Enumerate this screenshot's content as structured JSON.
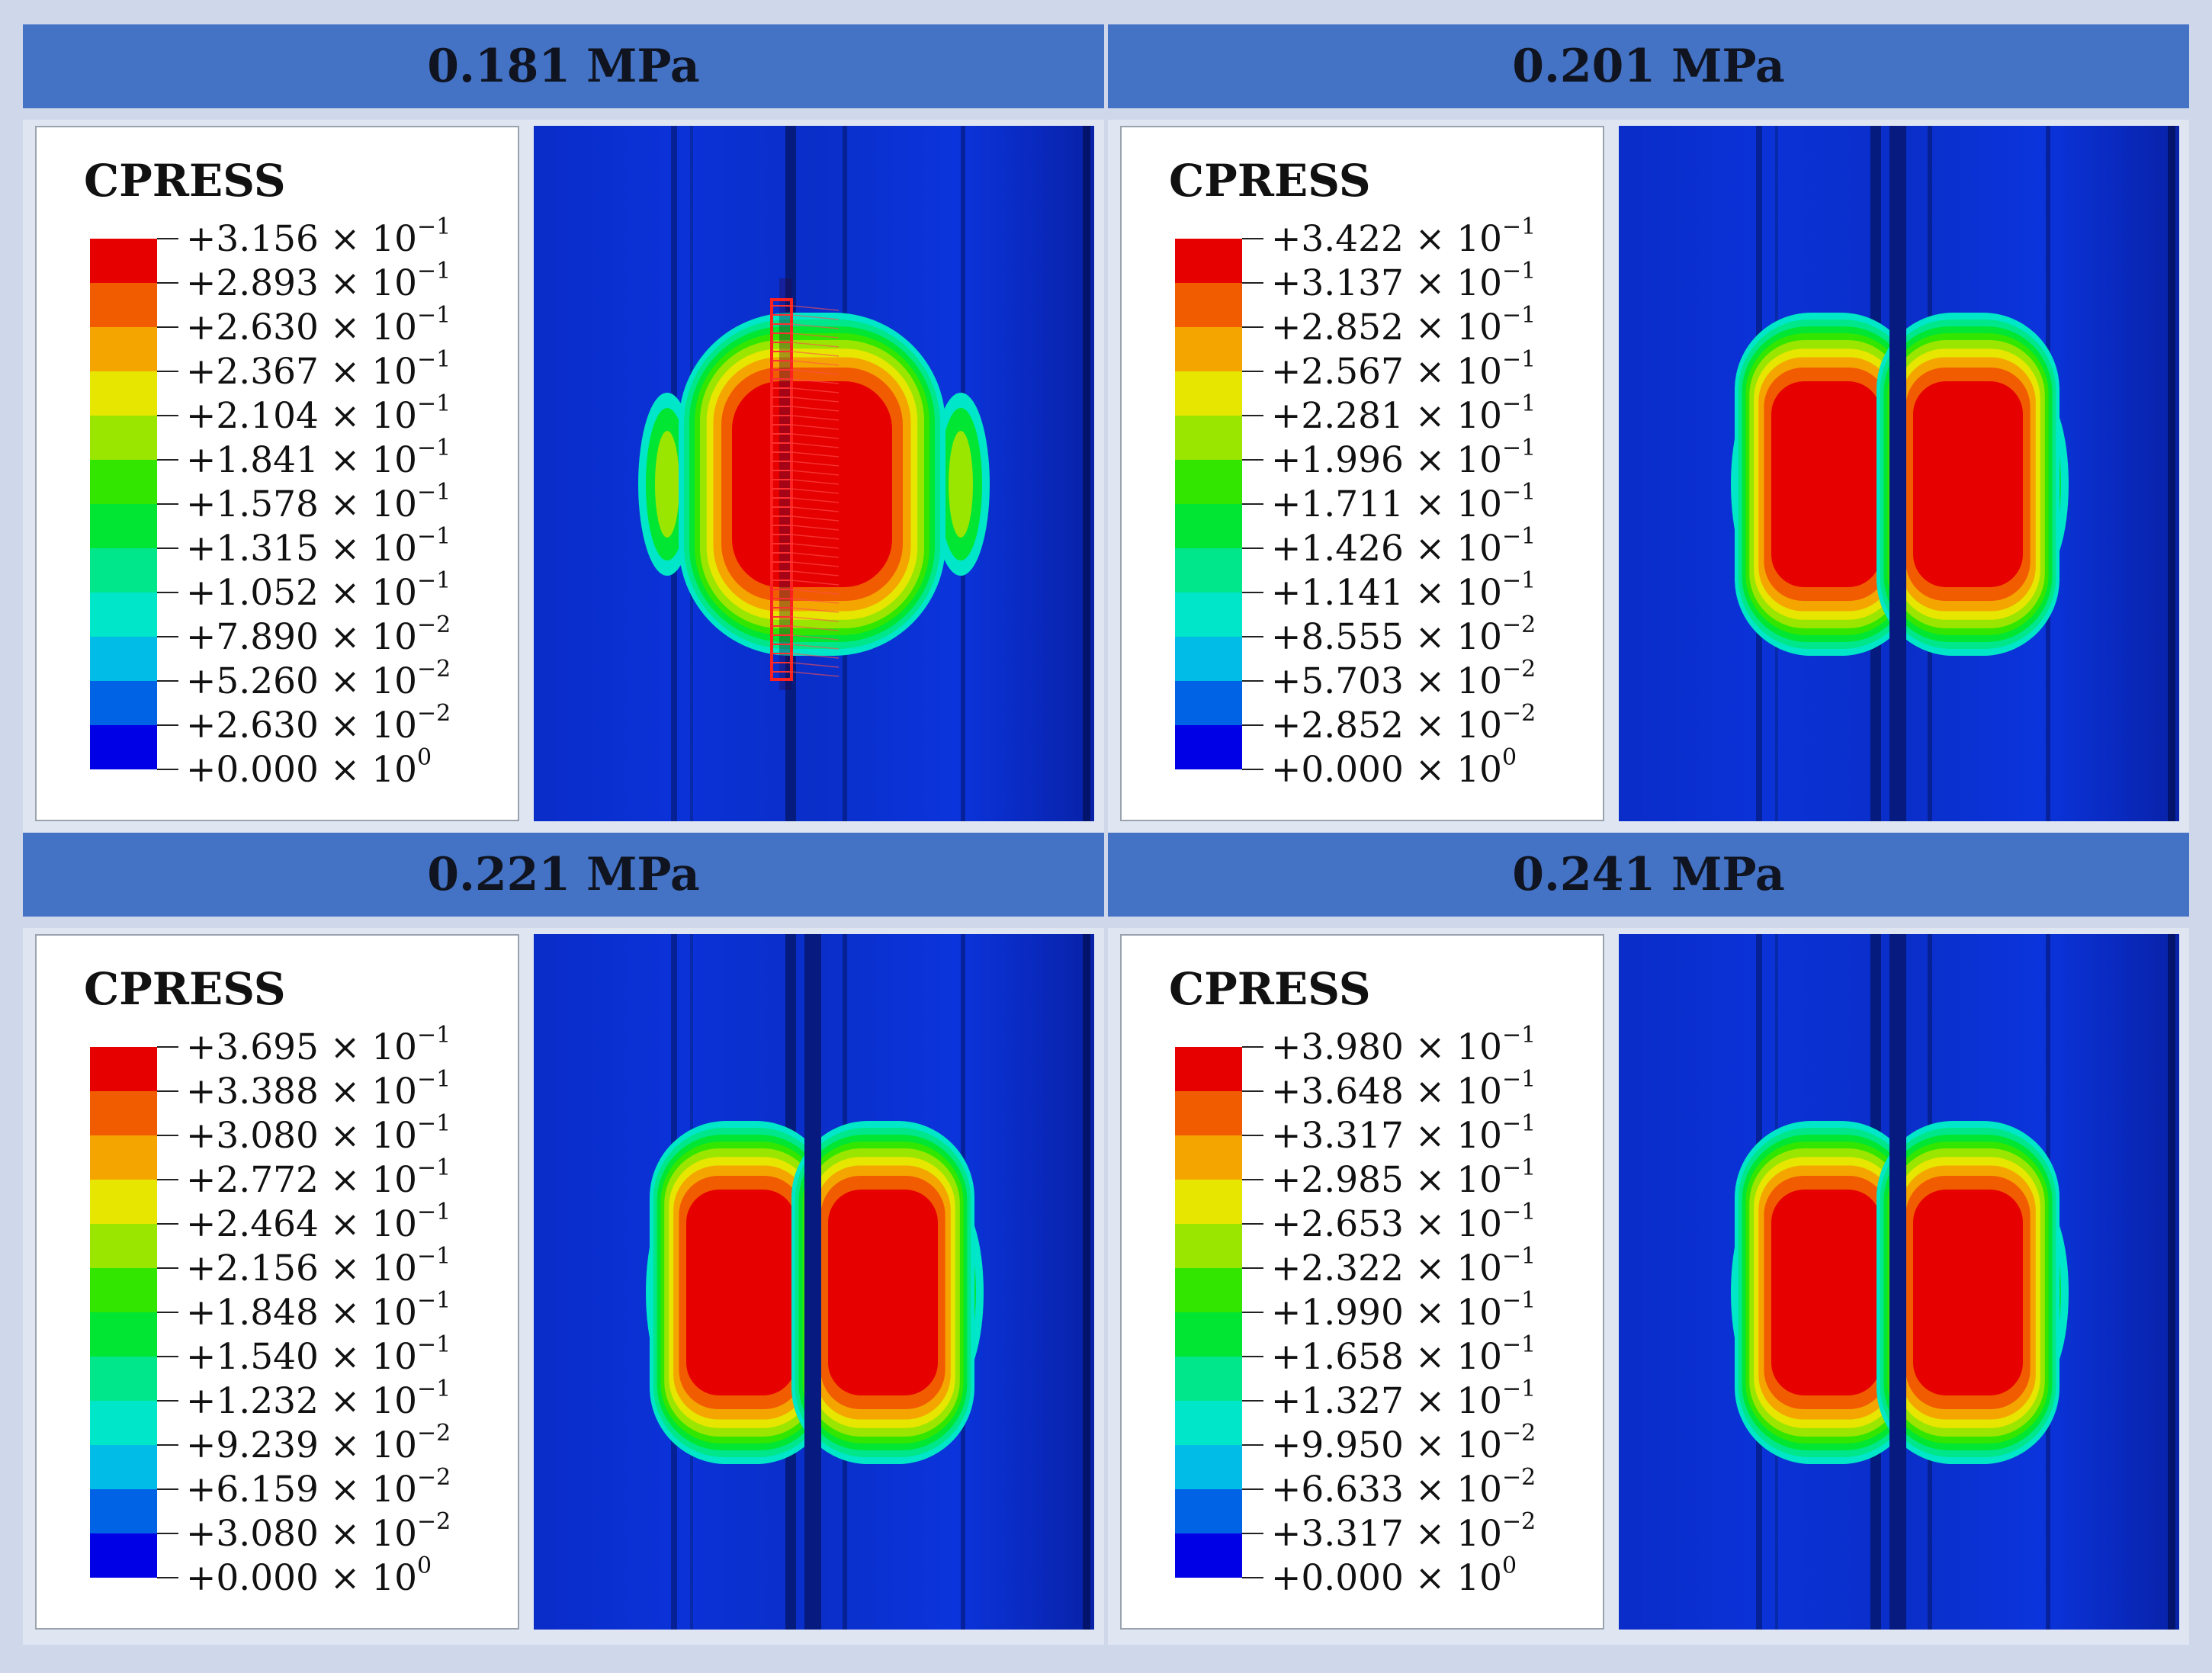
{
  "legend_title": "CPRESS",
  "band_colors": [
    "#e60000",
    "#f25c00",
    "#f5a500",
    "#e6e600",
    "#9ae600",
    "#33e600",
    "#00e633",
    "#00e68a",
    "#00e6c8",
    "#00bce6",
    "#0063e6",
    "#0000e6"
  ],
  "panels": [
    {
      "pressure": "0.181 MPa",
      "labels": [
        {
          "m": "+3.156",
          "e": "−1"
        },
        {
          "m": "+2.893",
          "e": "−1"
        },
        {
          "m": "+2.630",
          "e": "−1"
        },
        {
          "m": "+2.367",
          "e": "−1"
        },
        {
          "m": "+2.104",
          "e": "−1"
        },
        {
          "m": "+1.841",
          "e": "−1"
        },
        {
          "m": "+1.578",
          "e": "−1"
        },
        {
          "m": "+1.315",
          "e": "−1"
        },
        {
          "m": "+1.052",
          "e": "−1"
        },
        {
          "m": "+7.890",
          "e": "−2"
        },
        {
          "m": "+5.260",
          "e": "−2"
        },
        {
          "m": "+2.630",
          "e": "−2"
        },
        {
          "m": "+0.000",
          "e": "0"
        }
      ],
      "separated": false
    },
    {
      "pressure": "0.201 MPa",
      "labels": [
        {
          "m": "+3.422",
          "e": "−1"
        },
        {
          "m": "+3.137",
          "e": "−1"
        },
        {
          "m": "+2.852",
          "e": "−1"
        },
        {
          "m": "+2.567",
          "e": "−1"
        },
        {
          "m": "+2.281",
          "e": "−1"
        },
        {
          "m": "+1.996",
          "e": "−1"
        },
        {
          "m": "+1.711",
          "e": "−1"
        },
        {
          "m": "+1.426",
          "e": "−1"
        },
        {
          "m": "+1.141",
          "e": "−1"
        },
        {
          "m": "+8.555",
          "e": "−2"
        },
        {
          "m": "+5.703",
          "e": "−2"
        },
        {
          "m": "+2.852",
          "e": "−2"
        },
        {
          "m": "+0.000",
          "e": "0"
        }
      ],
      "separated": true
    },
    {
      "pressure": "0.221 MPa",
      "labels": [
        {
          "m": "+3.695",
          "e": "−1"
        },
        {
          "m": "+3.388",
          "e": "−1"
        },
        {
          "m": "+3.080",
          "e": "−1"
        },
        {
          "m": "+2.772",
          "e": "−1"
        },
        {
          "m": "+2.464",
          "e": "−1"
        },
        {
          "m": "+2.156",
          "e": "−1"
        },
        {
          "m": "+1.848",
          "e": "−1"
        },
        {
          "m": "+1.540",
          "e": "−1"
        },
        {
          "m": "+1.232",
          "e": "−1"
        },
        {
          "m": "+9.239",
          "e": "−2"
        },
        {
          "m": "+6.159",
          "e": "−2"
        },
        {
          "m": "+3.080",
          "e": "−2"
        },
        {
          "m": "+0.000",
          "e": "0"
        }
      ],
      "separated": true
    },
    {
      "pressure": "0.241 MPa",
      "labels": [
        {
          "m": "+3.980",
          "e": "−1"
        },
        {
          "m": "+3.648",
          "e": "−1"
        },
        {
          "m": "+3.317",
          "e": "−1"
        },
        {
          "m": "+2.985",
          "e": "−1"
        },
        {
          "m": "+2.653",
          "e": "−1"
        },
        {
          "m": "+2.322",
          "e": "−1"
        },
        {
          "m": "+1.990",
          "e": "−1"
        },
        {
          "m": "+1.658",
          "e": "−1"
        },
        {
          "m": "+1.327",
          "e": "−1"
        },
        {
          "m": "+9.950",
          "e": "−2"
        },
        {
          "m": "+6.633",
          "e": "−2"
        },
        {
          "m": "+3.317",
          "e": "−2"
        },
        {
          "m": "+0.000",
          "e": "0"
        }
      ],
      "separated": true
    }
  ]
}
